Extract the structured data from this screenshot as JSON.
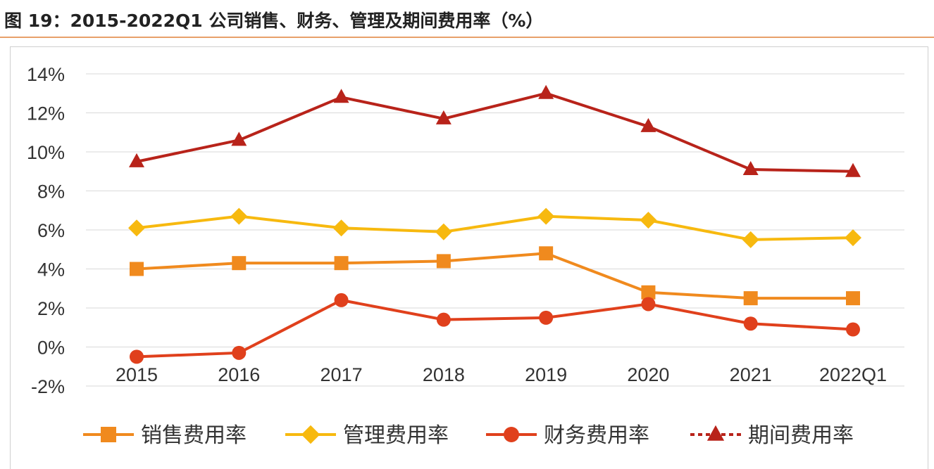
{
  "title": "图 19：2015-2022Q1 公司销售、财务、管理及期间费用率（%）",
  "chart_data": {
    "type": "line",
    "title": "",
    "xlabel": "",
    "ylabel": "",
    "categories": [
      "2015",
      "2016",
      "2017",
      "2018",
      "2019",
      "2020",
      "2021",
      "2022Q1"
    ],
    "ylim": [
      -2,
      14
    ],
    "yticks": [
      "-2%",
      "0%",
      "2%",
      "4%",
      "6%",
      "8%",
      "10%",
      "12%",
      "14%"
    ],
    "grid": true,
    "legend_position": "bottom",
    "series": [
      {
        "name": "销售费用率",
        "marker": "square",
        "color": "#f08a1e",
        "dashed": false,
        "values": [
          4.0,
          4.3,
          4.3,
          4.4,
          4.8,
          2.8,
          2.5,
          2.5
        ]
      },
      {
        "name": "管理费用率",
        "marker": "diamond",
        "color": "#f7b90f",
        "dashed": false,
        "values": [
          6.1,
          6.7,
          6.1,
          5.9,
          6.7,
          6.5,
          5.5,
          5.6
        ]
      },
      {
        "name": "财务费用率",
        "marker": "circle",
        "color": "#e0401c",
        "dashed": false,
        "values": [
          -0.5,
          -0.3,
          2.4,
          1.4,
          1.5,
          2.2,
          1.2,
          0.9
        ]
      },
      {
        "name": "期间费用率",
        "marker": "triangle",
        "color": "#b8231a",
        "dashed": true,
        "values": [
          9.5,
          10.6,
          12.8,
          11.7,
          13.0,
          11.3,
          9.1,
          9.0
        ]
      }
    ]
  }
}
